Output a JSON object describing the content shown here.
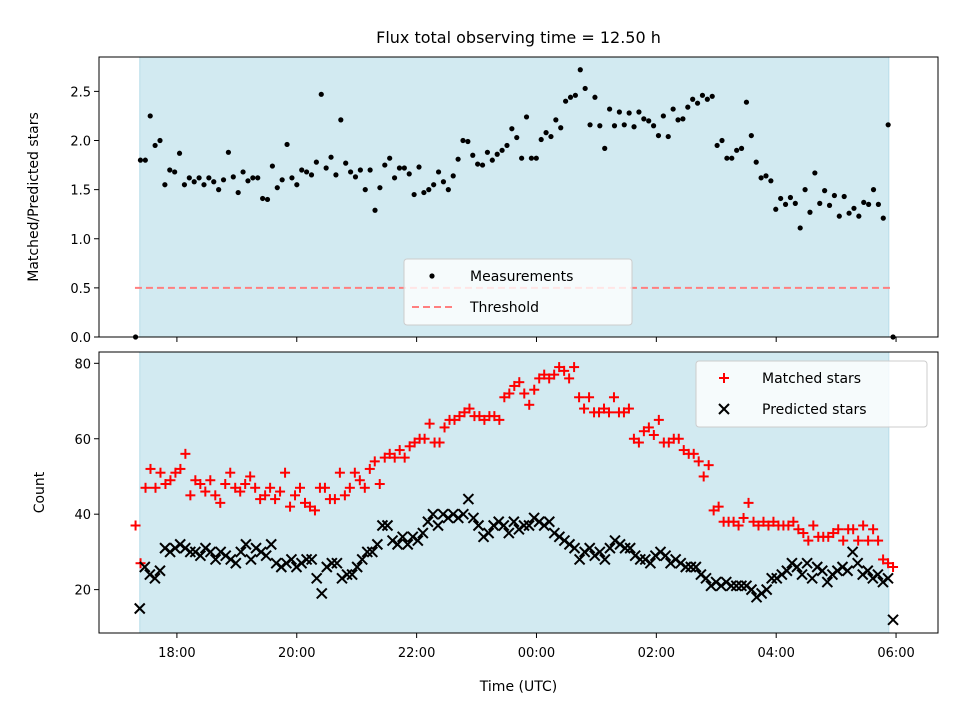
{
  "figure": {
    "title": "Flux total observing time = 12.50 h",
    "xlabel": "Time (UTC)",
    "x_ticks": [
      "18:00",
      "20:00",
      "22:00",
      "00:00",
      "02:00",
      "04:00",
      "06:00"
    ],
    "x_tick_hours": [
      18,
      20,
      22,
      24,
      26,
      28,
      30
    ]
  },
  "colors": {
    "span": "#add8e6",
    "measurements": "#000000",
    "threshold": "#ff7f7f",
    "matched": "#ff0000",
    "predicted": "#000000"
  },
  "chart_data": [
    {
      "type": "scatter",
      "ylabel": "Matched/Predicted stars",
      "xlim": [
        16.7,
        30.7
      ],
      "ylim": [
        0,
        2.85
      ],
      "y_ticks": [
        "0.0",
        "0.5",
        "1.0",
        "1.5",
        "2.0",
        "2.5"
      ],
      "y_tick_values": [
        0,
        0.5,
        1.0,
        1.5,
        2.0,
        2.5
      ],
      "shaded_span": [
        17.38,
        29.88
      ],
      "threshold": 0.5,
      "legend": {
        "placement": "lower center",
        "entries": [
          "Measurements",
          "Threshold"
        ]
      },
      "series": [
        {
          "name": "Measurements",
          "y": [
            0.0,
            1.8,
            1.8,
            2.25,
            1.95,
            2.0,
            1.55,
            1.7,
            1.68,
            1.87,
            1.55,
            1.62,
            1.58,
            1.62,
            1.55,
            1.62,
            1.58,
            1.5,
            1.6,
            1.88,
            1.63,
            1.47,
            1.68,
            1.59,
            1.62,
            1.62,
            1.41,
            1.4,
            1.74,
            1.52,
            1.6,
            1.96,
            1.62,
            1.55,
            1.7,
            1.68,
            1.65,
            1.78,
            2.47,
            1.72,
            1.83,
            1.65,
            2.21,
            1.77,
            1.68,
            1.63,
            1.7,
            1.5,
            1.7,
            1.29,
            1.52,
            1.75,
            1.82,
            1.62,
            1.72,
            1.72,
            1.66,
            1.45,
            1.73,
            1.47,
            1.5,
            1.55,
            1.68,
            1.58,
            1.5,
            1.64,
            1.81,
            2.0,
            1.99,
            1.85,
            1.76,
            1.75,
            1.88,
            1.8,
            1.86,
            1.9,
            1.95,
            2.12,
            2.03,
            1.82,
            2.24,
            1.82,
            1.82,
            2.01,
            2.08,
            2.04,
            2.21,
            2.13,
            2.4,
            2.44,
            2.46,
            2.72,
            2.53,
            2.16,
            2.44,
            2.15,
            1.92,
            2.32,
            2.15,
            2.29,
            2.16,
            2.28,
            2.14,
            2.29,
            2.22,
            2.2,
            2.15,
            2.05,
            2.25,
            2.04,
            2.32,
            2.21,
            2.22,
            2.34,
            2.42,
            2.38,
            2.46,
            2.42,
            2.45,
            1.95,
            2.0,
            1.82,
            1.82,
            1.9,
            1.92,
            2.39,
            2.05,
            1.78,
            1.62,
            1.64,
            1.59,
            1.3,
            1.41,
            1.35,
            1.42,
            1.36,
            1.11,
            1.5,
            1.27,
            1.67,
            1.36,
            1.49,
            1.34,
            1.44,
            1.23,
            1.43,
            1.26,
            1.31,
            1.23,
            1.37,
            1.35,
            1.5,
            1.35,
            1.21,
            2.16,
            0.0
          ]
        }
      ]
    },
    {
      "type": "scatter",
      "ylabel": "Count",
      "xlim": [
        16.7,
        30.7
      ],
      "ylim": [
        8.5,
        83
      ],
      "y_ticks": [
        "20",
        "40",
        "60",
        "80"
      ],
      "y_tick_values": [
        20,
        40,
        60,
        80
      ],
      "shaded_span": [
        17.38,
        29.88
      ],
      "legend": {
        "placement": "upper right",
        "entries": [
          "Matched stars",
          "Predicted stars"
        ]
      },
      "series": [
        {
          "name": "Matched stars",
          "y": [
            37,
            27,
            47,
            52,
            47,
            51,
            48,
            49,
            51,
            52,
            56,
            45,
            49,
            48,
            46,
            49,
            45,
            43,
            48,
            51,
            47,
            46,
            48,
            50,
            47,
            44,
            45,
            47,
            44,
            46,
            51,
            42,
            45,
            47,
            43,
            42,
            41,
            47,
            47,
            44,
            44,
            51,
            45,
            47,
            51,
            49,
            47,
            52,
            54,
            48,
            55,
            56,
            55,
            57,
            55,
            58,
            59,
            60,
            60,
            64,
            59,
            59,
            63,
            65,
            65,
            66,
            67,
            68,
            66,
            66,
            65,
            66,
            66,
            65,
            71,
            72,
            74,
            75,
            72,
            69,
            73,
            76,
            77,
            76,
            77,
            79,
            78,
            76,
            79,
            71,
            68,
            71,
            67,
            67,
            68,
            67,
            71,
            67,
            67,
            68,
            60,
            59,
            62,
            63,
            61,
            65,
            59,
            59,
            60,
            60,
            57,
            56,
            56,
            54,
            50,
            53,
            41,
            42,
            38,
            38,
            38,
            37,
            39,
            43,
            38,
            37,
            38,
            37,
            38,
            37,
            37,
            37,
            38,
            36,
            35,
            33,
            37,
            34,
            34,
            34,
            35,
            36,
            33,
            36,
            36,
            33,
            37,
            33,
            36,
            33,
            28,
            27,
            26
          ]
        },
        {
          "name": "Predicted stars",
          "y": [
            15,
            26,
            24,
            23,
            25,
            31,
            30,
            31,
            32,
            31,
            30,
            30,
            29,
            31,
            30,
            28,
            30,
            29,
            28,
            27,
            30,
            32,
            28,
            31,
            30,
            29,
            32,
            27,
            26,
            27,
            28,
            26,
            27,
            28,
            28,
            23,
            19,
            26,
            27,
            27,
            23,
            24,
            24,
            26,
            28,
            30,
            30,
            32,
            37,
            37,
            33,
            32,
            34,
            32,
            34,
            33,
            35,
            38,
            40,
            37,
            40,
            39,
            40,
            39,
            40,
            44,
            39,
            37,
            34,
            35,
            37,
            38,
            37,
            35,
            38,
            36,
            37,
            37,
            39,
            38,
            37,
            38,
            35,
            34,
            33,
            32,
            31,
            28,
            30,
            31,
            29,
            30,
            28,
            31,
            33,
            32,
            31,
            31,
            29,
            28,
            28,
            27,
            29,
            30,
            29,
            27,
            28,
            27,
            26,
            26,
            26,
            24,
            23,
            21,
            22,
            21,
            22,
            21,
            21,
            21,
            21,
            20,
            18,
            19,
            20,
            23,
            23,
            24,
            25,
            27,
            26,
            24,
            27,
            23,
            26,
            25,
            22,
            24,
            25,
            26,
            25,
            30,
            27,
            24,
            25,
            23,
            24,
            22,
            23,
            12
          ]
        }
      ]
    }
  ]
}
